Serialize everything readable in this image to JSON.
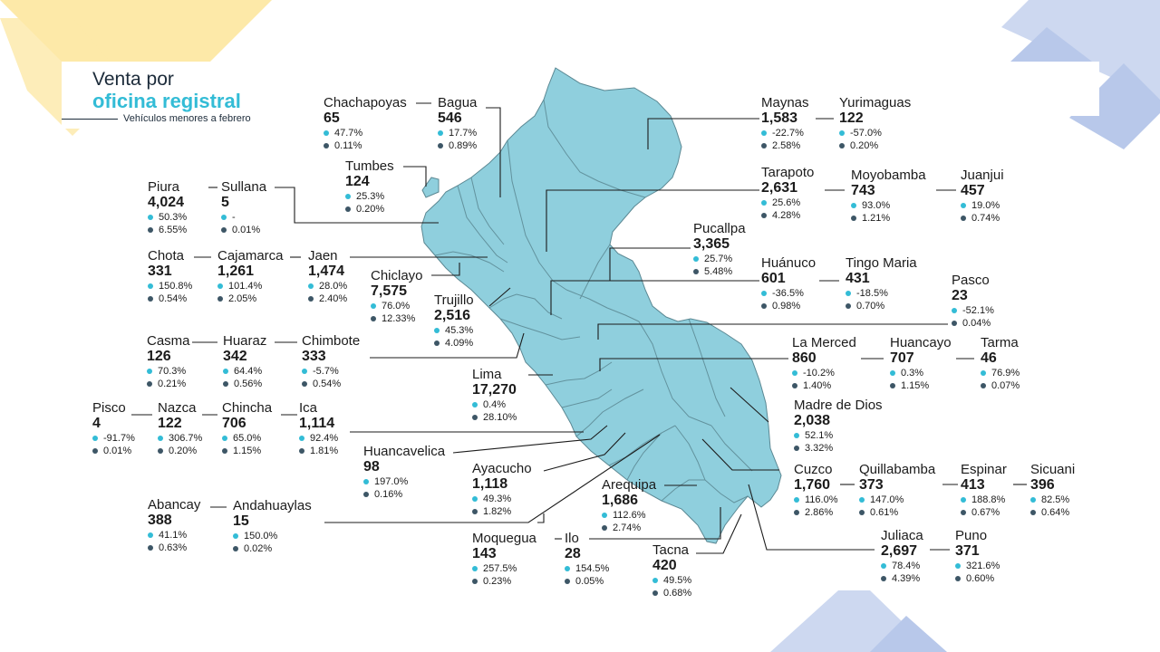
{
  "header": {
    "title_line1": "Venta por",
    "title_line2": "oficina registral",
    "subtitle": "Vehículos menores a febrero"
  },
  "colors": {
    "map_fill": "#8fcfdd",
    "growth_dot": "#33bcd6",
    "share_dot": "#3d5666",
    "accent_teal": "#33bcd6",
    "deco_yellow": "#fde9a8",
    "deco_blue": "#b8c8ea"
  },
  "offices": {
    "chachapoyas": {
      "name": "Chachapoyas",
      "value": "65",
      "growth": "47.7%",
      "share": "0.11%"
    },
    "bagua": {
      "name": "Bagua",
      "value": "546",
      "growth": "17.7%",
      "share": "0.89%"
    },
    "tumbes": {
      "name": "Tumbes",
      "value": "124",
      "growth": "25.3%",
      "share": "0.20%"
    },
    "piura": {
      "name": "Piura",
      "value": "4,024",
      "growth": "50.3%",
      "share": "6.55%"
    },
    "sullana": {
      "name": "Sullana",
      "value": "5",
      "growth": "-",
      "share": "0.01%"
    },
    "chota": {
      "name": "Chota",
      "value": "331",
      "growth": "150.8%",
      "share": "0.54%"
    },
    "cajamarca": {
      "name": "Cajamarca",
      "value": "1,261",
      "growth": "101.4%",
      "share": "2.05%"
    },
    "jaen": {
      "name": "Jaen",
      "value": "1,474",
      "growth": "28.0%",
      "share": "2.40%"
    },
    "chiclayo": {
      "name": "Chiclayo",
      "value": "7,575",
      "growth": "76.0%",
      "share": "12.33%"
    },
    "trujillo": {
      "name": "Trujillo",
      "value": "2,516",
      "growth": "45.3%",
      "share": "4.09%"
    },
    "casma": {
      "name": "Casma",
      "value": "126",
      "growth": "70.3%",
      "share": "0.21%"
    },
    "huaraz": {
      "name": "Huaraz",
      "value": "342",
      "growth": "64.4%",
      "share": "0.56%"
    },
    "chimbote": {
      "name": "Chimbote",
      "value": "333",
      "growth": "-5.7%",
      "share": "0.54%"
    },
    "lima": {
      "name": "Lima",
      "value": "17,270",
      "growth": "0.4%",
      "share": "28.10%"
    },
    "pisco": {
      "name": "Pisco",
      "value": "4",
      "growth": "-91.7%",
      "share": "0.01%"
    },
    "nazca": {
      "name": "Nazca",
      "value": "122",
      "growth": "306.7%",
      "share": "0.20%"
    },
    "chincha": {
      "name": "Chincha",
      "value": "706",
      "growth": "65.0%",
      "share": "1.15%"
    },
    "ica": {
      "name": "Ica",
      "value": "1,114",
      "growth": "92.4%",
      "share": "1.81%"
    },
    "huancavelica": {
      "name": "Huancavelica",
      "value": "98",
      "growth": "197.0%",
      "share": "0.16%"
    },
    "ayacucho": {
      "name": "Ayacucho",
      "value": "1,118",
      "growth": "49.3%",
      "share": "1.82%"
    },
    "arequipa": {
      "name": "Arequipa",
      "value": "1,686",
      "growth": "112.6%",
      "share": "2.74%"
    },
    "abancay": {
      "name": "Abancay",
      "value": "388",
      "growth": "41.1%",
      "share": "0.63%"
    },
    "andahuaylas": {
      "name": "Andahuaylas",
      "value": "15",
      "growth": "150.0%",
      "share": "0.02%"
    },
    "moquegua": {
      "name": "Moquegua",
      "value": "143",
      "growth": "257.5%",
      "share": "0.23%"
    },
    "ilo": {
      "name": "Ilo",
      "value": "28",
      "growth": "154.5%",
      "share": "0.05%"
    },
    "tacna": {
      "name": "Tacna",
      "value": "420",
      "growth": "49.5%",
      "share": "0.68%"
    },
    "maynas": {
      "name": "Maynas",
      "value": "1,583",
      "growth": "-22.7%",
      "share": "2.58%"
    },
    "yurimaguas": {
      "name": "Yurimaguas",
      "value": "122",
      "growth": "-57.0%",
      "share": "0.20%"
    },
    "tarapoto": {
      "name": "Tarapoto",
      "value": "2,631",
      "growth": "25.6%",
      "share": "4.28%"
    },
    "moyobamba": {
      "name": "Moyobamba",
      "value": "743",
      "growth": "93.0%",
      "share": "1.21%"
    },
    "juanjui": {
      "name": "Juanjui",
      "value": "457",
      "growth": "19.0%",
      "share": "0.74%"
    },
    "pucallpa": {
      "name": "Pucallpa",
      "value": "3,365",
      "growth": "25.7%",
      "share": "5.48%"
    },
    "huanuco": {
      "name": "Huánuco",
      "value": "601",
      "growth": "-36.5%",
      "share": "0.98%"
    },
    "tingomaria": {
      "name": "Tingo Maria",
      "value": "431",
      "growth": "-18.5%",
      "share": "0.70%"
    },
    "pasco": {
      "name": "Pasco",
      "value": "23",
      "growth": "-52.1%",
      "share": "0.04%"
    },
    "lamerced": {
      "name": "La Merced",
      "value": "860",
      "growth": "-10.2%",
      "share": "1.40%"
    },
    "huancayo": {
      "name": "Huancayo",
      "value": "707",
      "growth": "0.3%",
      "share": "1.15%"
    },
    "tarma": {
      "name": "Tarma",
      "value": "46",
      "growth": "76.9%",
      "share": "0.07%"
    },
    "madrededios": {
      "name": "Madre de Dios",
      "value": "2,038",
      "growth": "52.1%",
      "share": "3.32%"
    },
    "cuzco": {
      "name": "Cuzco",
      "value": "1,760",
      "growth": "116.0%",
      "share": "2.86%"
    },
    "quillabamba": {
      "name": "Quillabamba",
      "value": "373",
      "growth": "147.0%",
      "share": "0.61%"
    },
    "espinar": {
      "name": "Espinar",
      "value": "413",
      "growth": "188.8%",
      "share": "0.67%"
    },
    "sicuani": {
      "name": "Sicuani",
      "value": "396",
      "growth": "82.5%",
      "share": "0.64%"
    },
    "juliaca": {
      "name": "Juliaca",
      "value": "2,697",
      "growth": "78.4%",
      "share": "4.39%"
    },
    "puno": {
      "name": "Puno",
      "value": "371",
      "growth": "321.6%",
      "share": "0.60%"
    }
  }
}
